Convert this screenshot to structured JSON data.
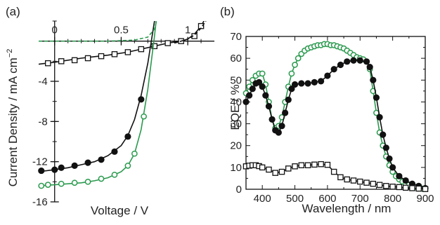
{
  "chart_data": [
    {
      "panel_label": "(a)",
      "type": "line",
      "xlabel": "Voltage / V",
      "ylabel": "Current Density / mA cm⁻²",
      "ylabel_main": "Current Density / mA cm",
      "ylabel_sup": "−2",
      "xlim": [
        -0.12,
        1.2
      ],
      "ylim": [
        -16,
        2
      ],
      "x_ticks": [
        {
          "value": 0,
          "label": "0"
        },
        {
          "value": 0.5,
          "label": "0.5"
        },
        {
          "value": 1,
          "label": "1"
        }
      ],
      "y_ticks": [
        {
          "value": -4,
          "label": "-4"
        },
        {
          "value": -8,
          "label": "-8"
        },
        {
          "value": -12,
          "label": "-12"
        },
        {
          "value": -16,
          "label": "-16"
        }
      ],
      "grid": false,
      "series": [
        {
          "color": "#111111",
          "marker": "open-square",
          "line": "solid",
          "curve_x": [
            -0.12,
            0,
            0.2,
            0.4,
            0.55,
            0.65,
            0.75,
            0.85,
            0.95,
            1.0,
            1.05,
            1.1,
            1.15,
            1.2
          ],
          "curve_y": [
            -2.3,
            -2.1,
            -1.7,
            -1.4,
            -1.1,
            -0.8,
            -0.5,
            -0.2,
            0.0,
            0.2,
            0.7,
            1.5,
            2.7,
            4.0
          ],
          "marker_x": [
            -0.05,
            0.05,
            0.15,
            0.25,
            0.35,
            0.45,
            0.55,
            0.65,
            0.75,
            0.85,
            0.95,
            1.05,
            1.1,
            1.15
          ],
          "marker_y": [
            -2.2,
            -2.0,
            -1.9,
            -1.7,
            -1.5,
            -1.3,
            -1.1,
            -0.8,
            -0.5,
            -0.2,
            0.0,
            0.5,
            1.5,
            2.5
          ]
        },
        {
          "color": "#111111",
          "marker": "none",
          "line": "dashed",
          "curve_x": [
            0.9,
            0.95,
            1.0,
            1.05,
            1.1,
            1.15,
            1.2
          ],
          "curve_y": [
            -0.2,
            0.0,
            0.2,
            0.6,
            1.3,
            2.3,
            3.6
          ],
          "marker_x": [],
          "marker_y": []
        },
        {
          "color": "#111111",
          "marker": "filled-circle",
          "line": "solid",
          "curve_x": [
            -0.12,
            0,
            0.1,
            0.2,
            0.3,
            0.4,
            0.5,
            0.55,
            0.6,
            0.65,
            0.7,
            0.75,
            0.8,
            0.85
          ],
          "curve_y": [
            -13.0,
            -12.8,
            -12.6,
            -12.3,
            -12.0,
            -11.4,
            -10.4,
            -9.4,
            -7.8,
            -5.4,
            -2.2,
            2.0,
            7.0,
            12.0
          ],
          "marker_x": [
            -0.1,
            0,
            0.05,
            0.15,
            0.25,
            0.35,
            0.45,
            0.55,
            0.65
          ],
          "marker_y": [
            -12.9,
            -12.8,
            -12.6,
            -12.4,
            -12.1,
            -11.8,
            -11.0,
            -9.5,
            -5.8
          ]
        },
        {
          "color": "#2a9a4e",
          "marker": "open-circle",
          "line": "solid",
          "curve_x": [
            -0.12,
            0,
            0.1,
            0.2,
            0.3,
            0.4,
            0.5,
            0.55,
            0.6,
            0.65,
            0.7,
            0.75,
            0.8,
            0.85
          ],
          "curve_y": [
            -14.4,
            -14.3,
            -14.2,
            -14.1,
            -13.9,
            -13.6,
            -13.0,
            -12.4,
            -11.2,
            -8.8,
            -4.8,
            0.5,
            6.5,
            12.0
          ],
          "marker_x": [
            -0.1,
            -0.05,
            0.05,
            0.15,
            0.25,
            0.35,
            0.45,
            0.55,
            0.6,
            0.67
          ],
          "marker_y": [
            -14.4,
            -14.3,
            -14.2,
            -14.1,
            -14.0,
            -13.7,
            -13.3,
            -12.4,
            -11.2,
            -7.5
          ]
        },
        {
          "color": "#2a9a4e",
          "marker": "none",
          "line": "dashed",
          "curve_x": [
            -0.12,
            0.2,
            0.4,
            0.6,
            0.7,
            0.75,
            0.8,
            0.85
          ],
          "curve_y": [
            0,
            0,
            0,
            0.1,
            0.4,
            1.2,
            3.8,
            8.0
          ],
          "marker_x": [],
          "marker_y": []
        }
      ]
    },
    {
      "panel_label": "(b)",
      "type": "line",
      "xlabel": "Wavelength / nm",
      "ylabel": "EQE / %",
      "xlim": [
        350,
        900
      ],
      "ylim": [
        0,
        70
      ],
      "x_ticks": [
        {
          "value": 400,
          "label": "400"
        },
        {
          "value": 500,
          "label": "500"
        },
        {
          "value": 600,
          "label": "600"
        },
        {
          "value": 700,
          "label": "700"
        },
        {
          "value": 800,
          "label": "800"
        },
        {
          "value": 900,
          "label": "900"
        }
      ],
      "y_ticks": [
        {
          "value": 0,
          "label": "0"
        },
        {
          "value": 10,
          "label": "10"
        },
        {
          "value": 20,
          "label": "20"
        },
        {
          "value": 30,
          "label": "30"
        },
        {
          "value": 40,
          "label": "40"
        },
        {
          "value": 50,
          "label": "50"
        },
        {
          "value": 60,
          "label": "60"
        },
        {
          "value": 70,
          "label": "70"
        }
      ],
      "grid": false,
      "series": [
        {
          "color": "#2a9a4e",
          "marker": "open-circle",
          "line": "solid",
          "x": [
            350,
            360,
            370,
            380,
            390,
            400,
            410,
            420,
            430,
            440,
            450,
            460,
            470,
            480,
            490,
            500,
            510,
            520,
            530,
            540,
            550,
            560,
            570,
            580,
            590,
            600,
            610,
            620,
            630,
            640,
            650,
            660,
            670,
            680,
            690,
            700,
            710,
            720,
            730,
            740,
            750,
            760,
            770,
            780,
            790,
            800,
            810,
            820,
            830,
            840,
            850,
            860,
            870,
            880,
            890,
            900
          ],
          "y": [
            44,
            47,
            50,
            52,
            53,
            53,
            48,
            40,
            32,
            28,
            29,
            33,
            40,
            47,
            53,
            57,
            60,
            62,
            63.5,
            64.5,
            65,
            65.5,
            66,
            66,
            66.5,
            66.5,
            66,
            66,
            65.5,
            65,
            64.5,
            63.5,
            62.5,
            61.5,
            60.5,
            60,
            59.5,
            58.5,
            55,
            45,
            35,
            26,
            20,
            15,
            11,
            8,
            6,
            4.5,
            3.5,
            2.5,
            2,
            1.5,
            1,
            0.5,
            0.3,
            0.2
          ]
        },
        {
          "color": "#111111",
          "marker": "filled-circle",
          "line": "solid",
          "x": [
            350,
            360,
            370,
            380,
            390,
            400,
            410,
            420,
            430,
            440,
            450,
            460,
            470,
            480,
            490,
            500,
            520,
            540,
            560,
            580,
            600,
            620,
            640,
            660,
            680,
            700,
            720,
            730,
            740,
            750,
            760,
            770,
            780,
            790,
            800,
            820,
            840,
            860,
            880,
            900
          ],
          "y": [
            40,
            43,
            46,
            48.5,
            49,
            47,
            43,
            38,
            32,
            27,
            26,
            29,
            35,
            41,
            46,
            48,
            48.5,
            48.5,
            49,
            49.5,
            52,
            55,
            57,
            58.5,
            59,
            59,
            58.5,
            56,
            50,
            42,
            33,
            25,
            19,
            14,
            10,
            6,
            4,
            2.5,
            1.5,
            0.5
          ]
        },
        {
          "color": "#111111",
          "marker": "open-square",
          "line": "solid",
          "x": [
            350,
            360,
            370,
            380,
            390,
            400,
            420,
            440,
            460,
            480,
            500,
            520,
            540,
            560,
            580,
            600,
            620,
            640,
            660,
            680,
            700,
            720,
            740,
            760,
            780,
            800,
            820,
            840,
            860,
            880,
            900
          ],
          "y": [
            10.5,
            10.8,
            11,
            11,
            10.6,
            10,
            9,
            7.5,
            8,
            9.5,
            10.5,
            11,
            11,
            11.3,
            11.5,
            11.2,
            8,
            5.5,
            4.5,
            4,
            3.5,
            3,
            2.5,
            2,
            1.5,
            1.2,
            1,
            0.7,
            0.5,
            0.3,
            0.1
          ]
        }
      ]
    }
  ]
}
